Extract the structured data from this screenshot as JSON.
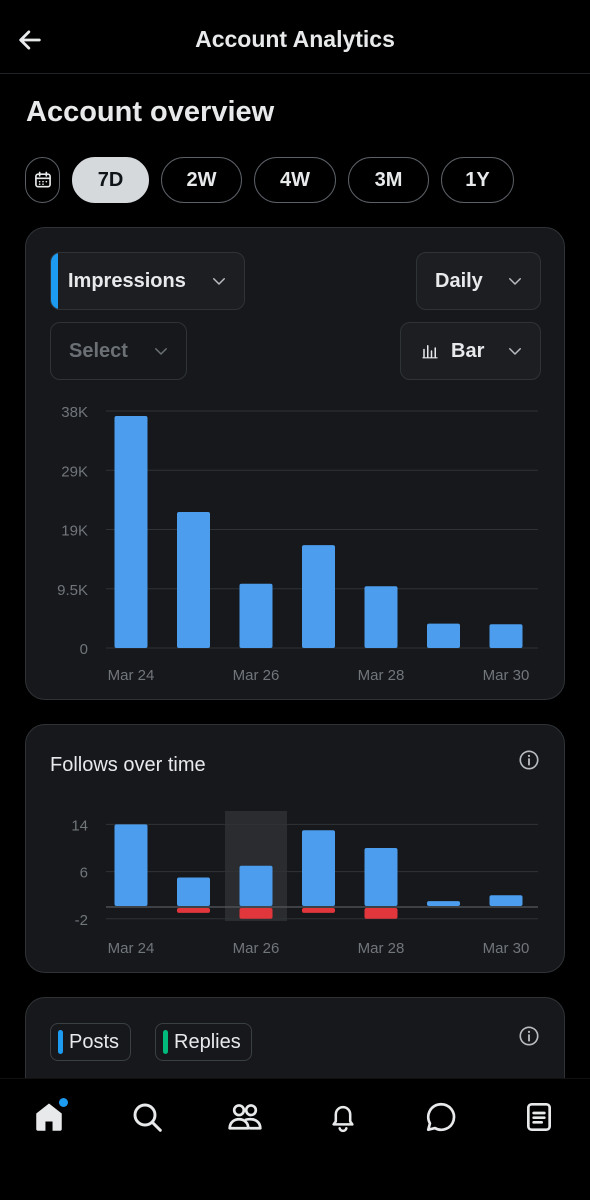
{
  "header": {
    "title": "Account Analytics",
    "back_icon": "arrow-left-icon"
  },
  "overview": {
    "heading": "Account overview",
    "ranges": [
      "7D",
      "2W",
      "4W",
      "3M",
      "1Y"
    ],
    "selected_range": "7D"
  },
  "impressions_card": {
    "metric_label": "Impressions",
    "interval_label": "Daily",
    "compare_placeholder": "Select",
    "chart_type_label": "Bar",
    "accent": "#1d9bf0"
  },
  "follows_card": {
    "title": "Follows over time"
  },
  "posts_card": {
    "chips": [
      {
        "label": "Posts",
        "color": "#1d9bf0"
      },
      {
        "label": "Replies",
        "color": "#00ba7c"
      }
    ]
  },
  "colors": {
    "blue": "#4c9ded",
    "red": "#e0363c",
    "bg": "#000000",
    "card": "#16181c"
  },
  "chart_data": [
    {
      "type": "bar",
      "categories": [
        "Mar 24",
        "Mar 25",
        "Mar 26",
        "Mar 27",
        "Mar 28",
        "Mar 29",
        "Mar 30"
      ],
      "x_tick_labels": [
        "Mar 24",
        "Mar 26",
        "Mar 28",
        "Mar 30"
      ],
      "y_tick_labels": [
        "38K",
        "29K",
        "19K",
        "9.5K",
        "0"
      ],
      "values": [
        37200,
        21800,
        10300,
        16500,
        9900,
        3900,
        3800
      ],
      "ylim": [
        0,
        38000
      ],
      "grid": true
    },
    {
      "type": "bar",
      "title": "Follows over time",
      "categories": [
        "Mar 24",
        "Mar 25",
        "Mar 26",
        "Mar 27",
        "Mar 28",
        "Mar 29",
        "Mar 30"
      ],
      "x_tick_labels": [
        "Mar 24",
        "Mar 26",
        "Mar 28",
        "Mar 30"
      ],
      "y_tick_labels": [
        "14",
        "6",
        "-2"
      ],
      "series": [
        {
          "values": [
            14,
            5,
            7,
            13,
            10,
            1,
            2
          ]
        },
        {
          "values": [
            0,
            -1,
            -2,
            -1,
            -2,
            0,
            0
          ]
        }
      ],
      "highlighted_category": "Mar 26",
      "ylim": [
        -2,
        14
      ],
      "grid": true
    }
  ],
  "tabbar": {
    "icons": [
      "home-icon",
      "search-icon",
      "communities-icon",
      "notifications-icon",
      "messages-icon",
      "lists-icon"
    ],
    "active": "home-icon"
  }
}
